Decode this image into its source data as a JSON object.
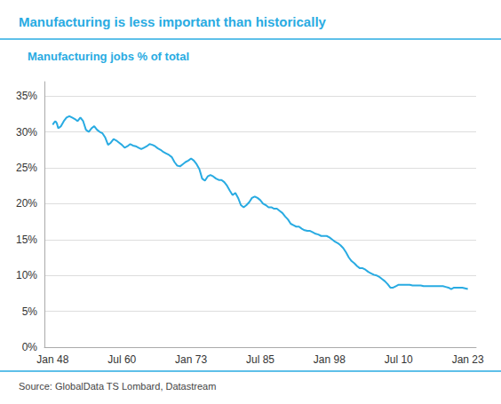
{
  "chart_data": {
    "type": "line",
    "title": "Manufacturing is less important than historically",
    "subtitle": "Manufacturing jobs % of total",
    "source": "Source: GlobalData TS Lombard, Datastream",
    "color": "#29ABE2",
    "grid": true,
    "xlim": [
      1946.5,
      2024.5
    ],
    "xticks": [
      {
        "value": 1948.0,
        "label": "Jan 48"
      },
      {
        "value": 1960.5,
        "label": "Jul 60"
      },
      {
        "value": 1973.0,
        "label": "Jan 73"
      },
      {
        "value": 1985.5,
        "label": "Jul 85"
      },
      {
        "value": 1998.0,
        "label": "Jan 98"
      },
      {
        "value": 2010.5,
        "label": "Jul 10"
      },
      {
        "value": 2023.0,
        "label": "Jan 23"
      }
    ],
    "ylim": [
      0,
      37
    ],
    "yticks": [
      {
        "value": 0,
        "label": "0%"
      },
      {
        "value": 5,
        "label": "5%"
      },
      {
        "value": 10,
        "label": "10%"
      },
      {
        "value": 15,
        "label": "15%"
      },
      {
        "value": 20,
        "label": "20%"
      },
      {
        "value": 25,
        "label": "25%"
      },
      {
        "value": 30,
        "label": "30%"
      },
      {
        "value": 35,
        "label": "35%"
      }
    ],
    "x": [
      1948.0,
      1948.25,
      1948.5,
      1948.75,
      1949.0,
      1949.5,
      1950.0,
      1950.5,
      1951.0,
      1951.5,
      1952.0,
      1952.5,
      1953.0,
      1953.5,
      1954.0,
      1954.5,
      1955.0,
      1955.5,
      1956.0,
      1956.5,
      1957.0,
      1957.5,
      1958.0,
      1958.5,
      1959.0,
      1959.5,
      1960.0,
      1960.5,
      1961.0,
      1961.5,
      1962.0,
      1962.5,
      1963.0,
      1963.5,
      1964.0,
      1964.5,
      1965.0,
      1965.5,
      1966.0,
      1966.5,
      1967.0,
      1967.5,
      1968.0,
      1968.5,
      1969.0,
      1969.5,
      1970.0,
      1970.5,
      1971.0,
      1971.5,
      1972.0,
      1972.5,
      1973.0,
      1973.5,
      1974.0,
      1974.5,
      1975.0,
      1975.5,
      1976.0,
      1976.5,
      1977.0,
      1977.5,
      1978.0,
      1978.5,
      1979.0,
      1979.5,
      1980.0,
      1980.5,
      1981.0,
      1981.5,
      1982.0,
      1982.5,
      1983.0,
      1983.5,
      1984.0,
      1984.5,
      1985.0,
      1985.5,
      1986.0,
      1986.5,
      1987.0,
      1987.5,
      1988.0,
      1988.5,
      1989.0,
      1989.5,
      1990.0,
      1990.5,
      1991.0,
      1991.5,
      1992.0,
      1992.5,
      1993.0,
      1993.5,
      1994.0,
      1994.5,
      1995.0,
      1995.5,
      1996.0,
      1996.5,
      1997.0,
      1997.5,
      1998.0,
      1998.5,
      1999.0,
      1999.5,
      2000.0,
      2000.5,
      2001.0,
      2001.5,
      2002.0,
      2002.5,
      2003.0,
      2003.5,
      2004.0,
      2004.5,
      2005.0,
      2005.5,
      2006.0,
      2006.5,
      2007.0,
      2007.5,
      2008.0,
      2008.5,
      2009.0,
      2009.5,
      2010.0,
      2010.5,
      2011.0,
      2011.5,
      2012.0,
      2012.5,
      2013.0,
      2013.5,
      2014.0,
      2014.5,
      2015.0,
      2015.5,
      2016.0,
      2016.5,
      2017.0,
      2017.5,
      2018.0,
      2018.5,
      2019.0,
      2019.5,
      2020.0,
      2020.5,
      2021.0,
      2021.5,
      2022.0,
      2022.5,
      2023.0
    ],
    "values": [
      31.0,
      31.3,
      31.5,
      31.2,
      30.5,
      30.8,
      31.5,
      32.0,
      32.2,
      32.0,
      31.8,
      31.5,
      32.0,
      31.5,
      30.3,
      30.0,
      30.5,
      30.8,
      30.3,
      30.0,
      29.8,
      29.2,
      28.2,
      28.5,
      29.0,
      28.8,
      28.5,
      28.2,
      27.8,
      28.0,
      28.3,
      28.1,
      28.0,
      27.8,
      27.6,
      27.8,
      28.0,
      28.3,
      28.2,
      28.0,
      27.7,
      27.5,
      27.2,
      27.0,
      26.8,
      26.5,
      25.8,
      25.3,
      25.2,
      25.5,
      25.8,
      26.0,
      26.3,
      26.0,
      25.5,
      24.8,
      23.5,
      23.2,
      23.8,
      24.0,
      23.8,
      23.5,
      23.3,
      23.3,
      23.0,
      22.5,
      21.8,
      21.2,
      21.5,
      20.8,
      19.8,
      19.5,
      19.8,
      20.2,
      20.8,
      21.0,
      20.8,
      20.5,
      20.0,
      19.8,
      19.5,
      19.5,
      19.3,
      19.3,
      19.0,
      18.7,
      18.2,
      17.8,
      17.2,
      17.0,
      16.8,
      16.8,
      16.5,
      16.3,
      16.2,
      16.2,
      16.0,
      15.8,
      15.7,
      15.5,
      15.5,
      15.5,
      15.3,
      15.0,
      14.7,
      14.5,
      14.2,
      13.8,
      13.2,
      12.5,
      12.0,
      11.7,
      11.3,
      11.0,
      11.0,
      10.8,
      10.5,
      10.3,
      10.1,
      10.0,
      9.8,
      9.5,
      9.2,
      8.8,
      8.3,
      8.3,
      8.5,
      8.7,
      8.7,
      8.7,
      8.7,
      8.7,
      8.6,
      8.6,
      8.6,
      8.6,
      8.5,
      8.5,
      8.5,
      8.5,
      8.5,
      8.5,
      8.5,
      8.5,
      8.4,
      8.3,
      8.1,
      8.3,
      8.3,
      8.3,
      8.3,
      8.2,
      8.1
    ]
  }
}
